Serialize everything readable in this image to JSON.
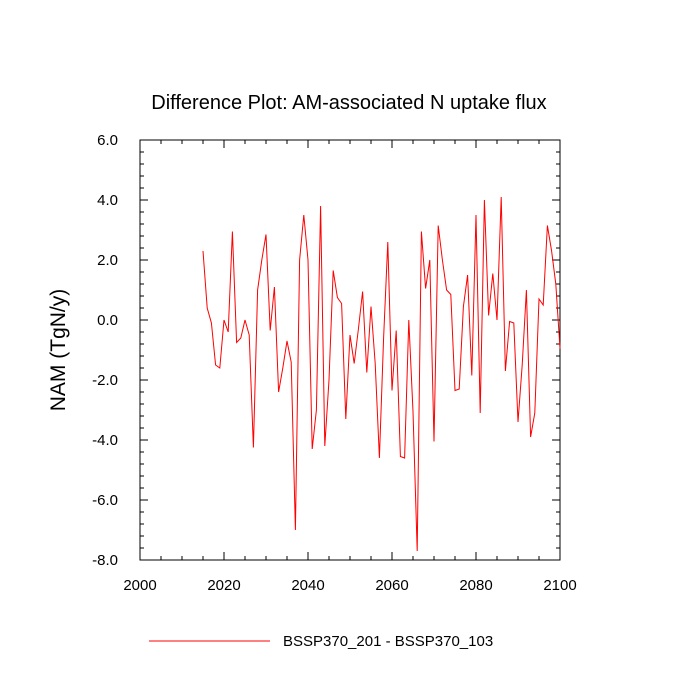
{
  "chart_data": {
    "type": "line",
    "title": "Difference Plot: AM-associated N uptake flux",
    "xlabel": "",
    "ylabel": "NAM  (TgN/y)",
    "xlim": [
      2000,
      2100
    ],
    "ylim": [
      -8.0,
      6.0
    ],
    "xticks": [
      2000,
      2020,
      2040,
      2060,
      2080,
      2100
    ],
    "xtick_labels": [
      "2000",
      "2020",
      "2040",
      "2060",
      "2080",
      "2100"
    ],
    "yticks": [
      -8.0,
      -6.0,
      -4.0,
      -2.0,
      0.0,
      2.0,
      4.0,
      6.0
    ],
    "ytick_labels": [
      "-8.0",
      "-6.0",
      "-4.0",
      "-2.0",
      "0.0",
      "2.0",
      "4.0",
      "6.0"
    ],
    "grid": false,
    "legend_position": "bottom-center",
    "series": [
      {
        "name": "BSSP370_201 - BSSP370_103",
        "color": "#ff0000",
        "x": [
          2015,
          2016,
          2017,
          2018,
          2019,
          2020,
          2021,
          2022,
          2023,
          2024,
          2025,
          2026,
          2027,
          2028,
          2029,
          2030,
          2031,
          2032,
          2033,
          2034,
          2035,
          2036,
          2037,
          2038,
          2039,
          2040,
          2041,
          2042,
          2043,
          2044,
          2045,
          2046,
          2047,
          2048,
          2049,
          2050,
          2051,
          2052,
          2053,
          2054,
          2055,
          2056,
          2057,
          2058,
          2059,
          2060,
          2061,
          2062,
          2063,
          2064,
          2065,
          2066,
          2067,
          2068,
          2069,
          2070,
          2071,
          2072,
          2073,
          2074,
          2075,
          2076,
          2077,
          2078,
          2079,
          2080,
          2081,
          2082,
          2083,
          2084,
          2085,
          2086,
          2087,
          2088,
          2089,
          2090,
          2091,
          2092,
          2093,
          2094,
          2095,
          2096,
          2097,
          2098,
          2099,
          2100
        ],
        "values": [
          2.3,
          0.4,
          -0.1,
          -1.5,
          -1.6,
          0.0,
          -0.4,
          2.95,
          -0.75,
          -0.6,
          0.0,
          -0.5,
          -4.25,
          1.0,
          2.0,
          2.85,
          -0.35,
          1.1,
          -2.4,
          -1.6,
          -0.7,
          -1.4,
          -7.0,
          2.0,
          3.5,
          2.0,
          -4.3,
          -3.0,
          3.8,
          -4.2,
          -2.0,
          1.65,
          0.75,
          0.55,
          -3.3,
          -0.5,
          -1.45,
          -0.3,
          0.95,
          -1.75,
          0.45,
          -1.45,
          -4.6,
          -0.6,
          2.6,
          -2.35,
          -0.35,
          -4.55,
          -4.6,
          0.0,
          -3.05,
          -7.7,
          2.95,
          1.05,
          2.0,
          -4.05,
          3.15,
          2.0,
          1.0,
          0.85,
          -2.35,
          -2.3,
          0.45,
          1.5,
          -1.85,
          3.5,
          -3.1,
          4.0,
          0.15,
          1.55,
          0.0,
          4.1,
          -1.7,
          -0.05,
          -0.1,
          -3.4,
          -1.5,
          1.0,
          -3.9,
          -3.1,
          0.7,
          0.5,
          3.15,
          2.3,
          1.2,
          -0.95
        ]
      }
    ]
  }
}
